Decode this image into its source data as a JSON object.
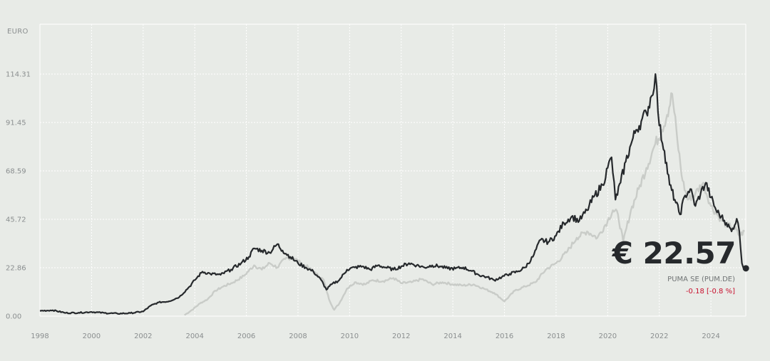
{
  "quote": {
    "price": "€ 22.57",
    "name": "PUMA SE (PUM.DE)",
    "change": "-0.18 [-0.8 %]",
    "change_color": "#c8102e"
  },
  "chart_data": {
    "type": "line",
    "ylabel": "EURO",
    "ylim": [
      0,
      114.31
    ],
    "xlim": [
      1998,
      2025.35
    ],
    "yticks": [
      "0.00",
      "22.86",
      "45.72",
      "68.59",
      "91.45",
      "114.31"
    ],
    "xticks": [
      "1998",
      "2000",
      "2002",
      "2004",
      "2006",
      "2008",
      "2010",
      "2012",
      "2014",
      "2016",
      "2018",
      "2020",
      "2022",
      "2024"
    ],
    "grid": true,
    "series": [
      {
        "color": "#26292c",
        "x": [
          1998.0,
          1998.5,
          1999.0,
          1999.5,
          2000.0,
          2000.5,
          2001.0,
          2001.5,
          2002.0,
          2002.3,
          2002.6,
          2003.0,
          2003.4,
          2003.8,
          2004.0,
          2004.3,
          2004.6,
          2005.0,
          2005.4,
          2005.8,
          2006.1,
          2006.3,
          2006.6,
          2006.9,
          2007.2,
          2007.4,
          2007.7,
          2008.0,
          2008.3,
          2008.6,
          2008.9,
          2009.1,
          2009.3,
          2009.6,
          2009.9,
          2010.2,
          2010.5,
          2010.8,
          2011.1,
          2011.4,
          2011.7,
          2012.0,
          2012.3,
          2012.6,
          2012.9,
          2013.2,
          2013.5,
          2013.8,
          2014.1,
          2014.4,
          2014.7,
          2015.0,
          2015.3,
          2015.6,
          2015.9,
          2016.2,
          2016.5,
          2016.8,
          2017.1,
          2017.4,
          2017.7,
          2018.0,
          2018.3,
          2018.6,
          2018.9,
          2019.2,
          2019.5,
          2019.8,
          2020.0,
          2020.15,
          2020.3,
          2020.5,
          2020.7,
          2020.9,
          2021.1,
          2021.3,
          2021.5,
          2021.7,
          2021.85,
          2022.0,
          2022.2,
          2022.4,
          2022.6,
          2022.8,
          2023.0,
          2023.2,
          2023.4,
          2023.6,
          2023.8,
          2024.0,
          2024.2,
          2024.4,
          2024.6,
          2024.8,
          2025.0,
          2025.1,
          2025.2,
          2025.3
        ],
        "values": [
          2.5,
          2.8,
          1.5,
          1.6,
          2.0,
          1.5,
          1.2,
          1.4,
          2.2,
          5.0,
          6.5,
          7.0,
          9.0,
          14.0,
          17.0,
          21.0,
          20.0,
          19.5,
          22.0,
          25.0,
          28.0,
          32.0,
          31.0,
          30.0,
          34.0,
          31.0,
          28.0,
          25.0,
          23.0,
          21.0,
          17.0,
          12.5,
          15.0,
          17.0,
          22.0,
          23.0,
          23.5,
          22.0,
          24.0,
          23.0,
          22.0,
          23.5,
          25.0,
          24.0,
          23.0,
          24.0,
          23.5,
          22.5,
          22.5,
          23.0,
          21.5,
          19.5,
          18.5,
          17.0,
          18.5,
          20.0,
          21.0,
          23.0,
          28.0,
          36.0,
          35.0,
          38.0,
          44.0,
          47.0,
          45.0,
          50.0,
          57.0,
          62.0,
          70.0,
          75.0,
          55.0,
          63.0,
          73.0,
          81.0,
          88.0,
          92.0,
          96.0,
          104.0,
          114.31,
          90.0,
          78.0,
          62.0,
          55.0,
          48.0,
          57.0,
          60.0,
          52.0,
          58.0,
          63.0,
          56.0,
          50.0,
          47.0,
          44.0,
          40.0,
          46.0,
          40.0,
          25.0,
          22.57
        ]
      },
      {
        "color": "#c9ccc8",
        "x": [
          2003.6,
          2003.9,
          2004.2,
          2004.5,
          2004.8,
          2005.1,
          2005.5,
          2005.9,
          2006.3,
          2006.6,
          2006.9,
          2007.2,
          2007.5,
          2007.8,
          2008.1,
          2008.4,
          2008.7,
          2009.0,
          2009.2,
          2009.4,
          2009.6,
          2009.9,
          2010.2,
          2010.6,
          2010.9,
          2011.3,
          2011.7,
          2012.0,
          2012.4,
          2012.8,
          2013.2,
          2013.6,
          2014.0,
          2014.4,
          2014.8,
          2015.2,
          2015.6,
          2016.0,
          2016.4,
          2016.8,
          2017.2,
          2017.6,
          2018.0,
          2018.4,
          2018.8,
          2019.2,
          2019.6,
          2020.0,
          2020.2,
          2020.4,
          2020.6,
          2020.9,
          2021.2,
          2021.5,
          2021.8,
          2022.1,
          2022.3,
          2022.5,
          2022.7,
          2022.9,
          2023.1,
          2023.4,
          2023.7,
          2024.0,
          2024.3,
          2024.6,
          2024.9,
          2025.1,
          2025.3
        ],
        "values": [
          0.5,
          3.0,
          6.0,
          8.0,
          12.0,
          14.0,
          16.0,
          19.0,
          24.0,
          22.0,
          25.0,
          23.0,
          27.0,
          28.0,
          25.0,
          23.0,
          20.0,
          17.0,
          8.0,
          3.0,
          6.0,
          13.0,
          16.0,
          15.0,
          17.0,
          16.5,
          18.0,
          15.5,
          16.0,
          17.5,
          15.0,
          16.0,
          15.0,
          14.5,
          15.0,
          13.0,
          11.0,
          7.0,
          12.0,
          14.0,
          16.0,
          22.0,
          25.0,
          30.0,
          37.0,
          40.0,
          37.0,
          45.0,
          50.0,
          48.0,
          35.0,
          50.0,
          60.0,
          70.0,
          80.0,
          88.0,
          95.0,
          105.0,
          83.0,
          64.0,
          55.0,
          58.0,
          63.0,
          52.0,
          47.0,
          43.0,
          42.0,
          38.0,
          40.0
        ]
      }
    ]
  }
}
